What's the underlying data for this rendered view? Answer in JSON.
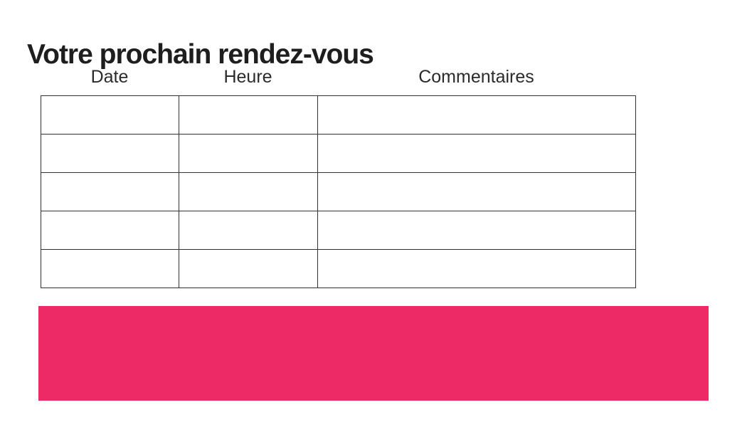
{
  "page": {
    "title": "Votre prochain rendez-vous"
  },
  "table": {
    "headers": [
      "Date",
      "Heure",
      "Commentaires"
    ],
    "rows": [
      [
        "",
        "",
        ""
      ],
      [
        "",
        "",
        ""
      ],
      [
        "",
        "",
        ""
      ],
      [
        "",
        "",
        ""
      ],
      [
        "",
        "",
        ""
      ]
    ]
  },
  "banner": {
    "color": "#ED2A65"
  },
  "colors": {
    "accent_pink": "#ED2A65",
    "table_border": "#333333",
    "title_text": "#1E1E1E"
  }
}
